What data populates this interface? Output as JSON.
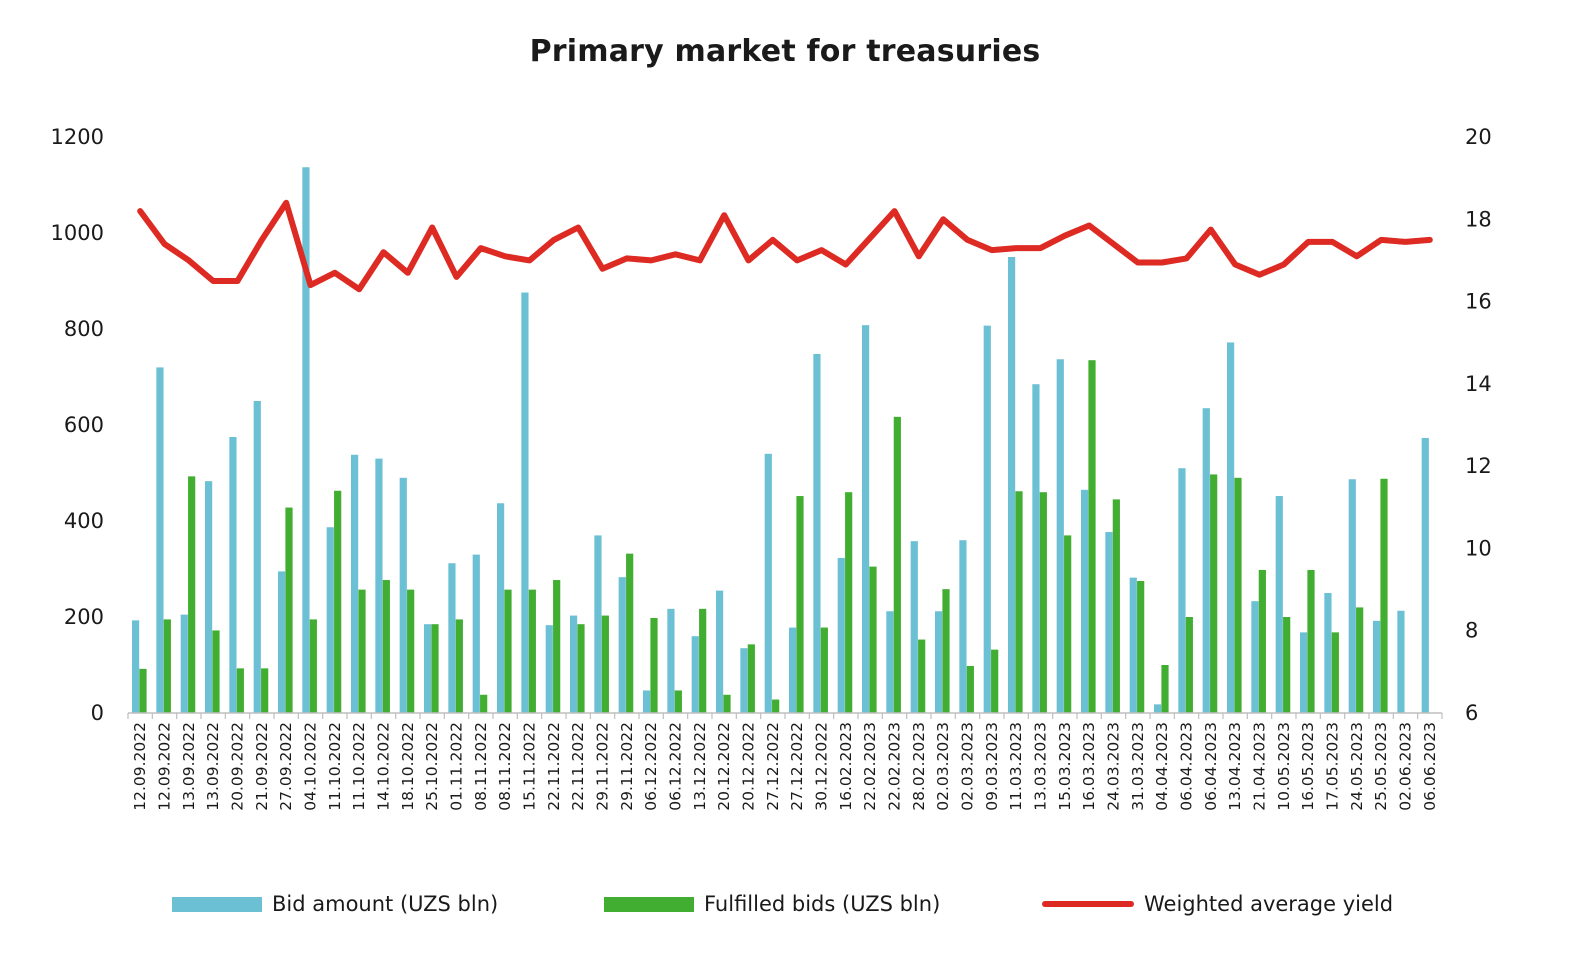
{
  "title": "Primary market for treasuries",
  "legend": {
    "bid": "Bid amount (UZS bln)",
    "fulfilled": "Fulfilled bids (UZS bln)",
    "yield": "Weighted average yield"
  },
  "colors": {
    "bid": "#6cc0d4",
    "fulfilled": "#41ae31",
    "yield": "#dd2a22"
  },
  "chart_data": {
    "type": "bar",
    "title": "Primary market for treasuries",
    "y_left": {
      "min": 0,
      "max": 1200,
      "ticks": [
        0,
        200,
        400,
        600,
        800,
        1000,
        1200
      ]
    },
    "y_right": {
      "min": 6,
      "max": 20,
      "ticks": [
        6,
        8,
        10,
        12,
        14,
        16,
        18,
        20
      ]
    },
    "categories": [
      "12.09.2022",
      "12.09.2022",
      "13.09.2022",
      "13.09.2022",
      "20.09.2022",
      "21.09.2022",
      "27.09.2022",
      "04.10.2022",
      "11.10.2022",
      "11.10.2022",
      "14.10.2022",
      "18.10.2022",
      "25.10.2022",
      "01.11.2022",
      "08.11.2022",
      "08.11.2022",
      "15.11.2022",
      "22.11.2022",
      "22.11.2022",
      "29.11.2022",
      "29.11.2022",
      "06.12.2022",
      "06.12.2022",
      "13.12.2022",
      "20.12.2022",
      "20.12.2022",
      "27.12.2022",
      "27.12.2022",
      "30.12.2022",
      "16.02.2023",
      "22.02.2023",
      "22.02.2023",
      "28.02.2023",
      "02.03.2023",
      "02.03.2023",
      "09.03.2023",
      "11.03.2023",
      "13.03.2023",
      "15.03.2023",
      "16.03.2023",
      "24.03.2023",
      "31.03.2023",
      "04.04.2023",
      "06.04.2023",
      "06.04.2023",
      "13.04.2023",
      "21.04.2023",
      "10.05.2023",
      "16.05.2023",
      "17.05.2023",
      "24.05.2023",
      "25.05.2023",
      "02.06.2023",
      "06.06.2023"
    ],
    "series": [
      {
        "name": "Bid amount (UZS bln)",
        "type": "bar",
        "values": [
          193,
          720,
          205,
          483,
          575,
          650,
          295,
          1137,
          387,
          538,
          530,
          490,
          185,
          312,
          330,
          437,
          876,
          183,
          203,
          370,
          283,
          47,
          217,
          160,
          255,
          135,
          540,
          178,
          748,
          323,
          808,
          212,
          358,
          212,
          360,
          807,
          950,
          685,
          737,
          465,
          377,
          282,
          18,
          510,
          635,
          772,
          233,
          452,
          168,
          250,
          487,
          192,
          213,
          573
        ]
      },
      {
        "name": "Fulfilled bids (UZS bln)",
        "type": "bar",
        "values": [
          92,
          195,
          493,
          172,
          93,
          93,
          428,
          195,
          463,
          257,
          277,
          257,
          185,
          195,
          38,
          257,
          257,
          277,
          185,
          203,
          332,
          198,
          47,
          217,
          38,
          143,
          28,
          452,
          178,
          460,
          305,
          617,
          153,
          258,
          98,
          132,
          462,
          460,
          370,
          735,
          445,
          275,
          100,
          200,
          497,
          490,
          298,
          200,
          298,
          168,
          220,
          488,
          0,
          0
        ]
      },
      {
        "name": "Weighted average yield",
        "type": "line",
        "axis": "right",
        "values": [
          18.2,
          17.4,
          17.0,
          16.5,
          16.5,
          17.5,
          18.4,
          16.4,
          16.7,
          16.3,
          17.2,
          16.7,
          17.8,
          16.6,
          17.3,
          17.1,
          17.0,
          17.5,
          17.8,
          16.8,
          17.05,
          17.0,
          17.15,
          17.0,
          18.1,
          17.0,
          17.5,
          17.0,
          17.25,
          16.9,
          17.55,
          18.2,
          17.1,
          18.0,
          17.5,
          17.25,
          17.3,
          17.3,
          17.6,
          17.85,
          17.4,
          16.95,
          16.95,
          17.05,
          17.75,
          16.9,
          16.65,
          16.9,
          17.45,
          17.45,
          17.1,
          17.5,
          17.45,
          17.5
        ]
      }
    ]
  }
}
